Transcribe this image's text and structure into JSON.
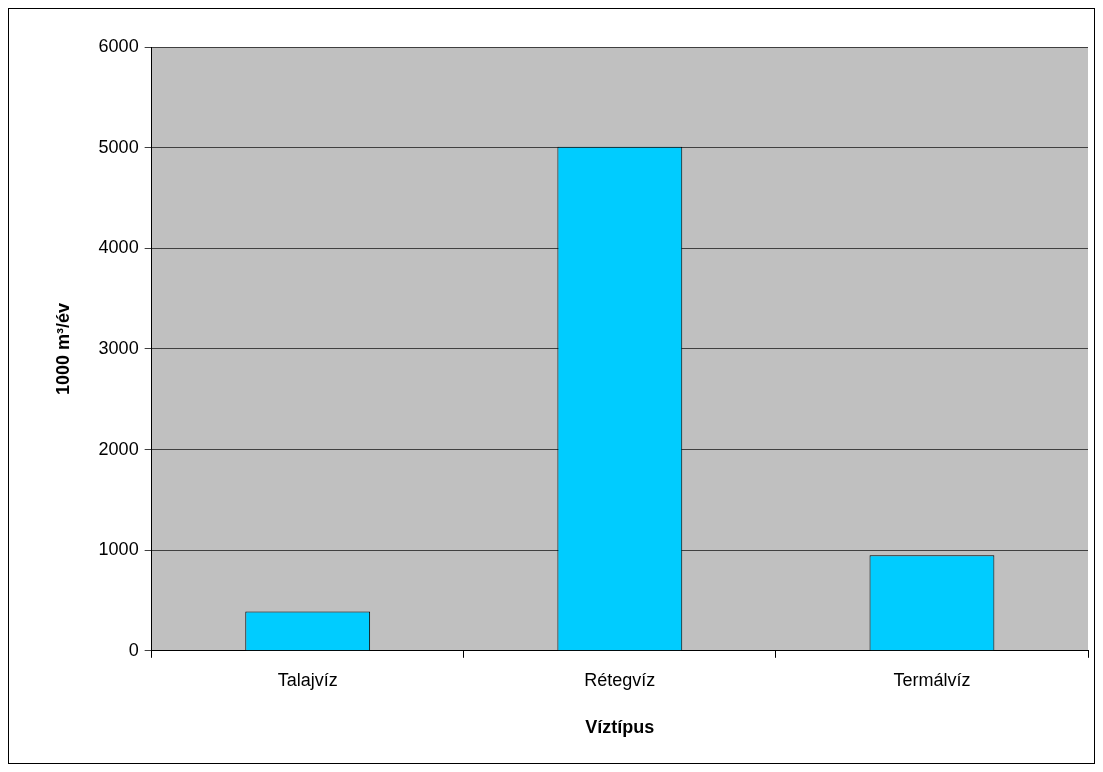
{
  "chart_data": {
    "type": "bar",
    "xlabel": "Víztípus",
    "ylabel": "1000 m³/év",
    "categories": [
      "Talajvíz",
      "Rétegvíz",
      "Termálvíz"
    ],
    "values": [
      390,
      5010,
      950
    ],
    "color": "#00ccff",
    "ylim": [
      0,
      6000
    ],
    "yticks": [
      0,
      1000,
      2000,
      3000,
      4000,
      5000,
      6000
    ],
    "grid": "y",
    "legend": false
  }
}
